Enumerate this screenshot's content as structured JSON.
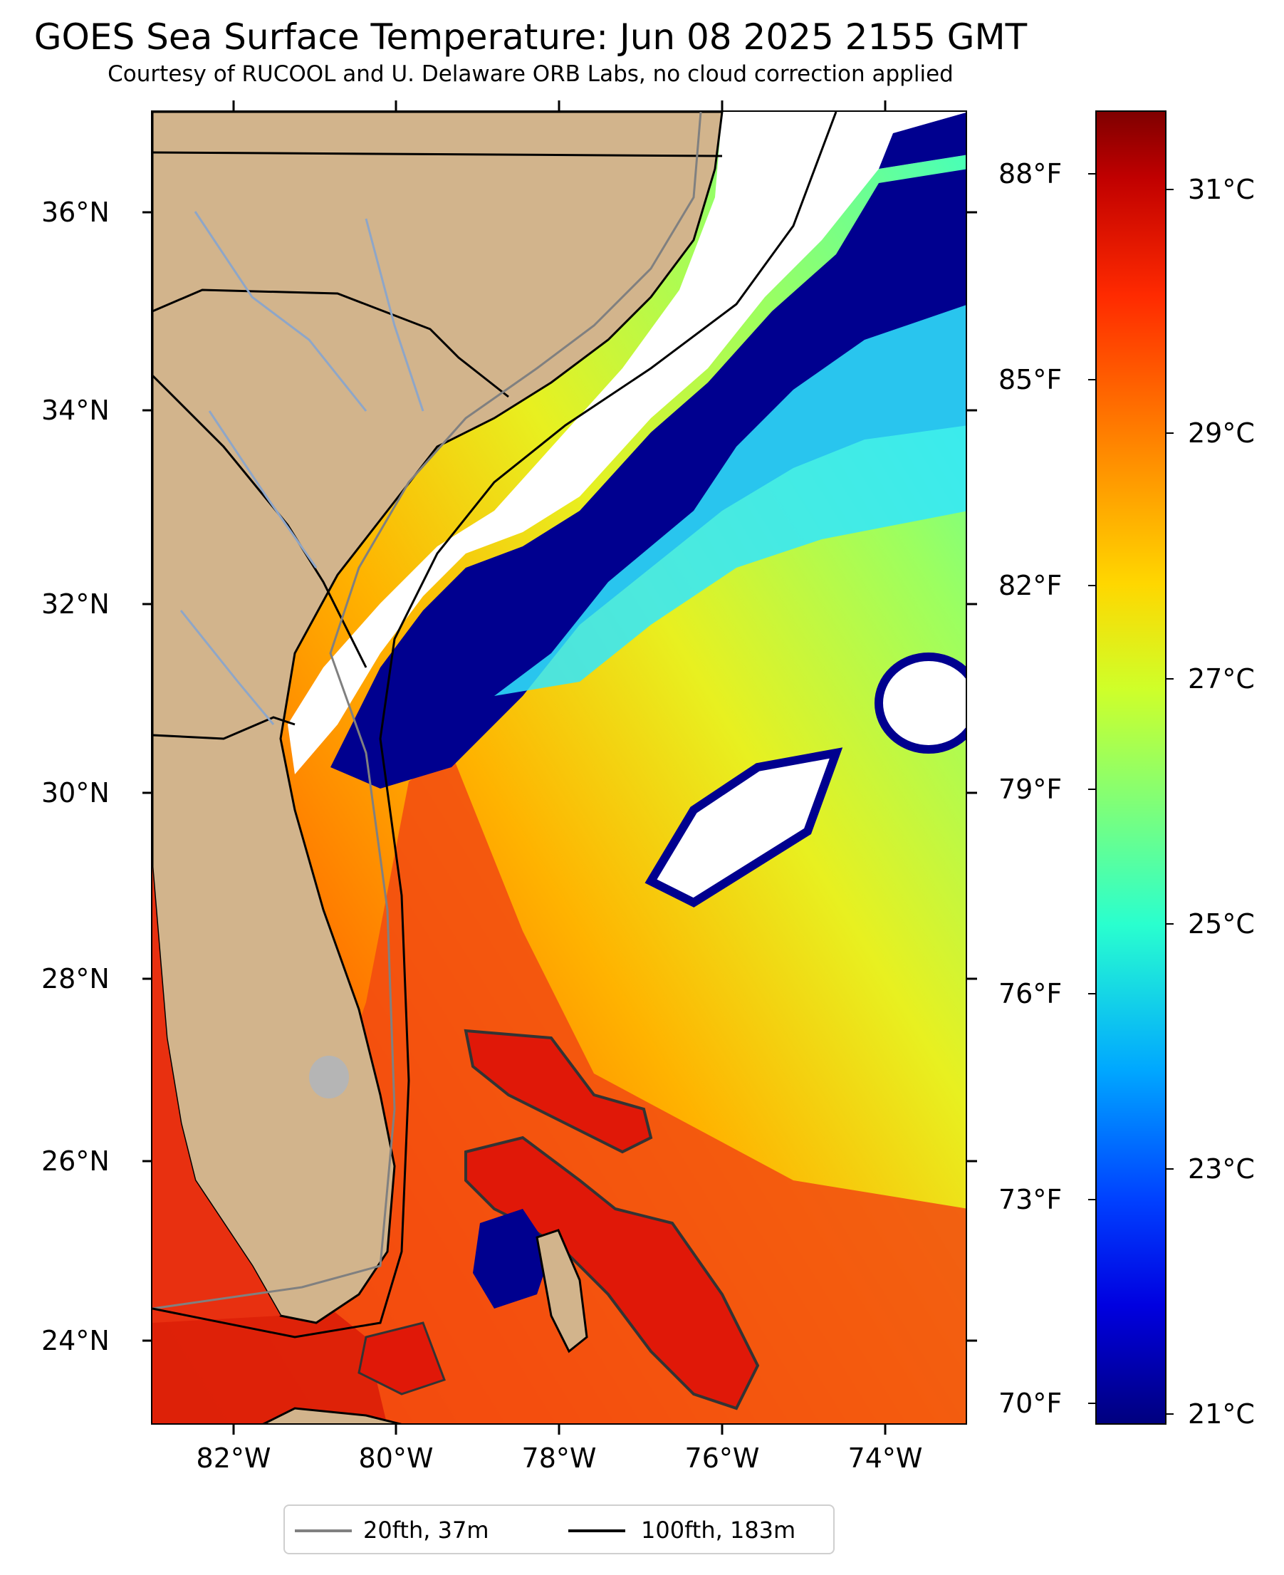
{
  "title": "GOES Sea Surface Temperature: Jun 08 2025 2155 GMT",
  "subtitle": "Courtesy of RUCOOL and U. Delaware ORB Labs, no cloud correction applied",
  "map": {
    "lat_labels": [
      "36°N",
      "34°N",
      "32°N",
      "30°N",
      "28°N",
      "26°N",
      "24°N"
    ],
    "lon_labels": [
      "82°W",
      "80°W",
      "78°W",
      "76°W",
      "74°W"
    ],
    "land_color": "#d2b48c",
    "no_data_color": "#ffffff"
  },
  "colorbar": {
    "fahrenheit_labels": [
      "88°F",
      "85°F",
      "82°F",
      "79°F",
      "76°F",
      "73°F",
      "70°F"
    ],
    "celsius_labels": [
      "31°C",
      "29°C",
      "27°C",
      "25°C",
      "23°C",
      "21°C"
    ],
    "colormap": "jet"
  },
  "legend": {
    "items": [
      {
        "label": "20fth, 37m",
        "color": "#808080"
      },
      {
        "label": "100fth, 183m",
        "color": "#000000"
      }
    ]
  }
}
